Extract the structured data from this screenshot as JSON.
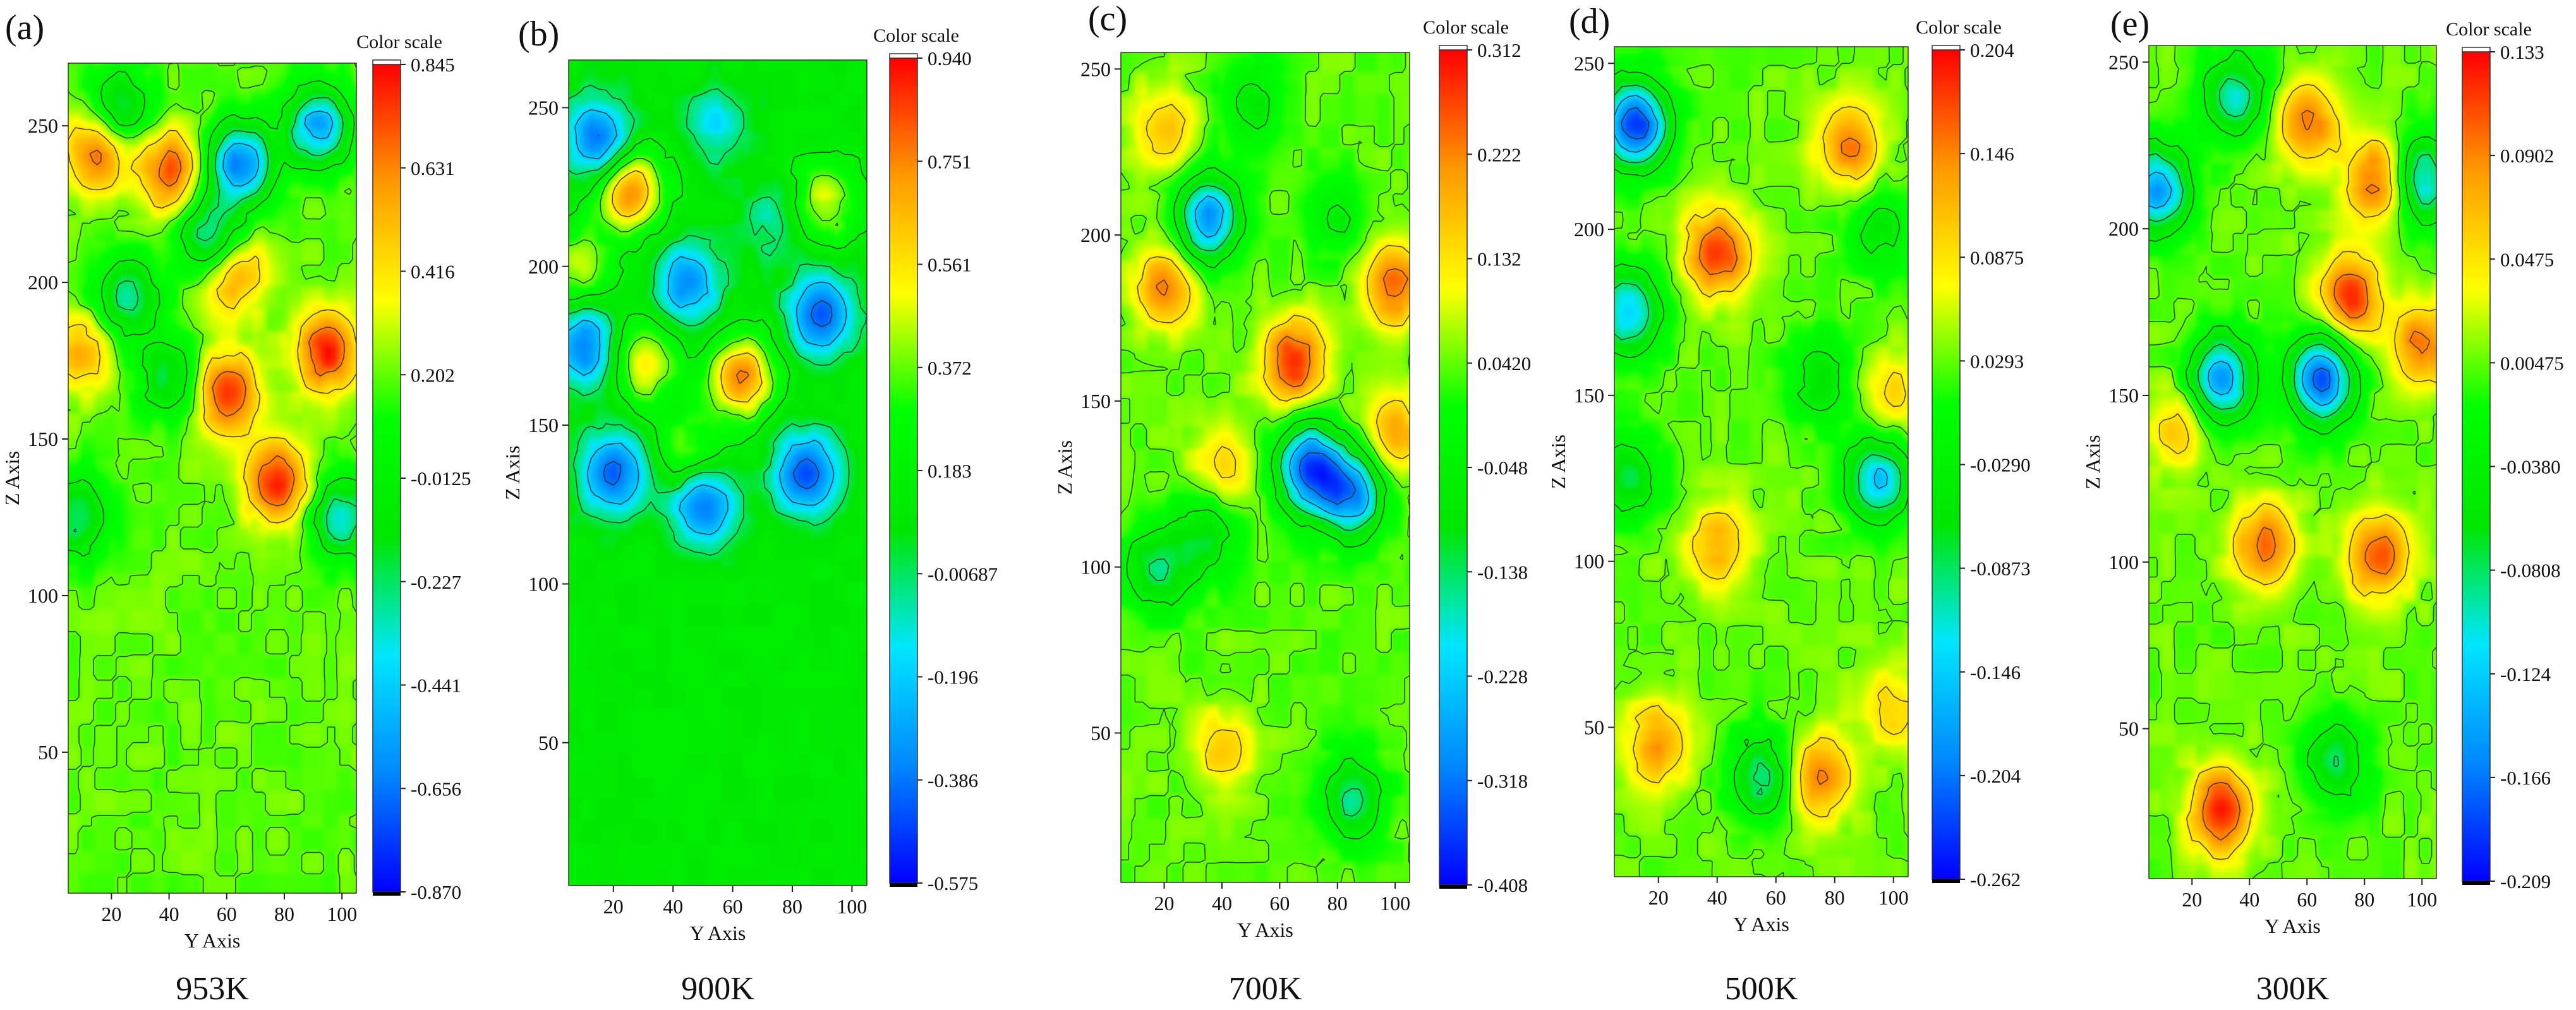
{
  "figure": {
    "colors": {
      "scale": [
        "#0000ff",
        "#0088ff",
        "#00e6ff",
        "#00e600",
        "#00ff00",
        "#ffff00",
        "#ff9900",
        "#ff0000"
      ],
      "contour": "#222222",
      "bottom_cap": "#000000",
      "top_cap": "#ffffff"
    }
  },
  "chart_data": [
    {
      "type": "heatmap",
      "panel_label": "(a)",
      "caption": "953K",
      "xlabel": "Y Axis",
      "ylabel": "Z Axis",
      "xlim": [
        5,
        105
      ],
      "ylim": [
        5,
        270
      ],
      "xticks": [
        "20",
        "40",
        "60",
        "80",
        "100"
      ],
      "yticks": [
        "50",
        "100",
        "150",
        "200",
        "250"
      ],
      "legend_title": "Color scale",
      "legend_values": [
        "0.845",
        "0.631",
        "0.416",
        "0.202",
        "-0.0125",
        "-0.227",
        "-0.441",
        "-0.656",
        "-0.870"
      ],
      "range": [
        -0.87,
        0.845
      ],
      "base": 0.2,
      "hotspots": [
        {
          "y": 15,
          "z": 243,
          "v": 0.75
        },
        {
          "y": 40,
          "z": 236,
          "v": 0.72
        },
        {
          "y": 65,
          "z": 238,
          "v": -0.65
        },
        {
          "y": 92,
          "z": 250,
          "v": -0.55
        },
        {
          "y": 22,
          "z": 255,
          "v": -0.3
        },
        {
          "y": 55,
          "z": 214,
          "v": -0.4
        },
        {
          "y": 25,
          "z": 195,
          "v": -0.3
        },
        {
          "y": 62,
          "z": 204,
          "v": 0.7
        },
        {
          "y": 95,
          "z": 178,
          "v": 0.8
        },
        {
          "y": 60,
          "z": 165,
          "v": 0.78
        },
        {
          "y": 10,
          "z": 178,
          "v": 0.55
        },
        {
          "y": 78,
          "z": 136,
          "v": 0.82
        },
        {
          "y": 40,
          "z": 170,
          "v": -0.2
        },
        {
          "y": 8,
          "z": 125,
          "v": -0.25
        },
        {
          "y": 100,
          "z": 125,
          "v": -0.35
        }
      ]
    },
    {
      "type": "heatmap",
      "panel_label": "(b)",
      "caption": "900K",
      "xlabel": "Y Axis",
      "ylabel": "Z Axis",
      "xlim": [
        5,
        105
      ],
      "ylim": [
        5,
        265
      ],
      "xticks": [
        "20",
        "40",
        "60",
        "80",
        "100"
      ],
      "yticks": [
        "50",
        "100",
        "150",
        "200",
        "250"
      ],
      "legend_title": "Color scale",
      "legend_values": [
        "0.940",
        "0.751",
        "0.561",
        "0.372",
        "0.183",
        "-0.00687",
        "-0.196",
        "-0.386",
        "-0.575"
      ],
      "range": [
        -0.575,
        0.94
      ],
      "base": 0.12,
      "hotspots": [
        {
          "y": 15,
          "z": 240,
          "v": -0.45
        },
        {
          "y": 25,
          "z": 224,
          "v": 0.8
        },
        {
          "y": 55,
          "z": 245,
          "v": -0.15
        },
        {
          "y": 75,
          "z": 215,
          "v": -0.1
        },
        {
          "y": 90,
          "z": 185,
          "v": -0.45
        },
        {
          "y": 10,
          "z": 175,
          "v": -0.4
        },
        {
          "y": 45,
          "z": 195,
          "v": -0.35
        },
        {
          "y": 30,
          "z": 170,
          "v": 0.55
        },
        {
          "y": 63,
          "z": 165,
          "v": 0.75
        },
        {
          "y": 90,
          "z": 220,
          "v": 0.5
        },
        {
          "y": 20,
          "z": 135,
          "v": -0.45
        },
        {
          "y": 50,
          "z": 125,
          "v": -0.4
        },
        {
          "y": 85,
          "z": 135,
          "v": -0.45
        },
        {
          "y": 45,
          "z": 142,
          "v": 0.4
        },
        {
          "y": 8,
          "z": 200,
          "v": 0.45
        }
      ]
    },
    {
      "type": "heatmap",
      "panel_label": "(c)",
      "caption": "700K",
      "xlabel": "Y Axis",
      "ylabel": "Z Axis",
      "xlim": [
        5,
        105
      ],
      "ylim": [
        5,
        255
      ],
      "xticks": [
        "20",
        "40",
        "60",
        "80",
        "100"
      ],
      "yticks": [
        "50",
        "100",
        "150",
        "200",
        "250"
      ],
      "legend_title": "Color scale",
      "legend_values": [
        "0.312",
        "0.222",
        "0.132",
        "0.0420",
        "-0.048",
        "-0.138",
        "-0.228",
        "-0.318",
        "-0.408"
      ],
      "range": [
        -0.408,
        0.312
      ],
      "base": 0.04,
      "hotspots": [
        {
          "y": 20,
          "z": 232,
          "v": 0.18
        },
        {
          "y": 35,
          "z": 205,
          "v": -0.3
        },
        {
          "y": 50,
          "z": 240,
          "v": -0.08
        },
        {
          "y": 20,
          "z": 185,
          "v": 0.22
        },
        {
          "y": 65,
          "z": 162,
          "v": 0.29
        },
        {
          "y": 100,
          "z": 185,
          "v": 0.25
        },
        {
          "y": 70,
          "z": 130,
          "v": -0.35
        },
        {
          "y": 85,
          "z": 122,
          "v": -0.3
        },
        {
          "y": 100,
          "z": 140,
          "v": 0.2
        },
        {
          "y": 40,
          "z": 130,
          "v": 0.15
        },
        {
          "y": 18,
          "z": 100,
          "v": -0.15
        },
        {
          "y": 40,
          "z": 45,
          "v": 0.15
        },
        {
          "y": 80,
          "z": 205,
          "v": -0.05
        },
        {
          "y": 85,
          "z": 30,
          "v": -0.15
        },
        {
          "y": 35,
          "z": 110,
          "v": -0.1
        }
      ]
    },
    {
      "type": "heatmap",
      "panel_label": "(d)",
      "caption": "500K",
      "xlabel": "Y Axis",
      "ylabel": "Z Axis",
      "xlim": [
        5,
        105
      ],
      "ylim": [
        5,
        255
      ],
      "xticks": [
        "20",
        "40",
        "60",
        "80",
        "100"
      ],
      "yticks": [
        "50",
        "100",
        "150",
        "200",
        "250"
      ],
      "legend_title": "Color scale",
      "legend_values": [
        "0.204",
        "0.146",
        "0.0875",
        "0.0293",
        "-0.0290",
        "-0.0873",
        "-0.146",
        "-0.204",
        "-0.262"
      ],
      "range": [
        -0.262,
        0.204
      ],
      "base": 0.03,
      "hotspots": [
        {
          "y": 12,
          "z": 232,
          "v": -0.24
        },
        {
          "y": 40,
          "z": 193,
          "v": 0.19
        },
        {
          "y": 85,
          "z": 225,
          "v": 0.15
        },
        {
          "y": 95,
          "z": 200,
          "v": -0.05
        },
        {
          "y": 10,
          "z": 175,
          "v": -0.15
        },
        {
          "y": 40,
          "z": 105,
          "v": 0.12
        },
        {
          "y": 20,
          "z": 45,
          "v": 0.14
        },
        {
          "y": 75,
          "z": 35,
          "v": 0.15
        },
        {
          "y": 100,
          "z": 55,
          "v": 0.1
        },
        {
          "y": 95,
          "z": 125,
          "v": -0.15
        },
        {
          "y": 100,
          "z": 150,
          "v": 0.1
        },
        {
          "y": 55,
          "z": 35,
          "v": -0.1
        },
        {
          "y": 10,
          "z": 125,
          "v": -0.08
        },
        {
          "y": 75,
          "z": 155,
          "v": -0.06
        }
      ]
    },
    {
      "type": "heatmap",
      "panel_label": "(e)",
      "caption": "300K",
      "xlabel": "Y Axis",
      "ylabel": "Z Axis",
      "xlim": [
        5,
        105
      ],
      "ylim": [
        5,
        255
      ],
      "xticks": [
        "20",
        "40",
        "60",
        "80",
        "100"
      ],
      "yticks": [
        "50",
        "100",
        "150",
        "200",
        "250"
      ],
      "legend_title": "Color scale",
      "legend_values": [
        "0.133",
        "0.0902",
        "0.0475",
        "0.00475",
        "-0.0380",
        "-0.0808",
        "-0.124",
        "-0.166",
        "-0.209"
      ],
      "range": [
        -0.209,
        0.133
      ],
      "base": 0.005,
      "hotspots": [
        {
          "y": 60,
          "z": 232,
          "v": 0.1
        },
        {
          "y": 85,
          "z": 215,
          "v": 0.11
        },
        {
          "y": 75,
          "z": 180,
          "v": 0.12
        },
        {
          "y": 100,
          "z": 165,
          "v": 0.1
        },
        {
          "y": 45,
          "z": 105,
          "v": 0.1
        },
        {
          "y": 85,
          "z": 102,
          "v": 0.11
        },
        {
          "y": 30,
          "z": 25,
          "v": 0.13
        },
        {
          "y": 8,
          "z": 212,
          "v": -0.15
        },
        {
          "y": 100,
          "z": 215,
          "v": -0.12
        },
        {
          "y": 65,
          "z": 155,
          "v": -0.18
        },
        {
          "y": 30,
          "z": 155,
          "v": -0.15
        },
        {
          "y": 35,
          "z": 240,
          "v": -0.1
        },
        {
          "y": 70,
          "z": 40,
          "v": -0.08
        },
        {
          "y": 15,
          "z": 140,
          "v": 0.06
        }
      ]
    }
  ]
}
